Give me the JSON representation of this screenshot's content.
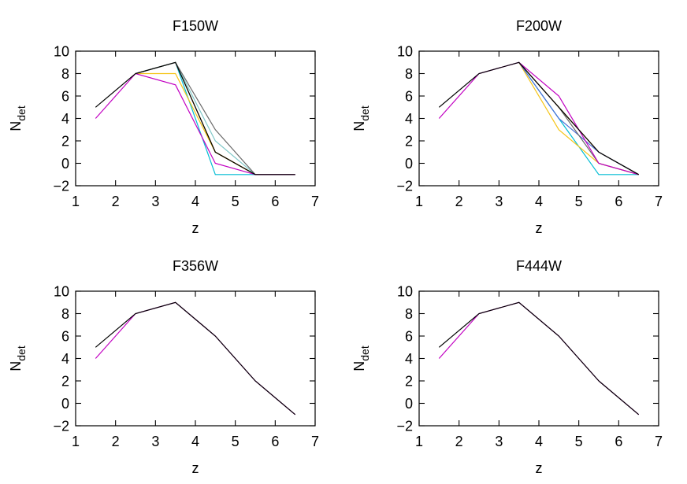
{
  "chart_data": [
    {
      "type": "line",
      "title": "F150W",
      "xlabel": "z",
      "ylabel": "N",
      "ylabel_sub": "det",
      "xlim": [
        1,
        7
      ],
      "ylim": [
        -2,
        10
      ],
      "xticks": [
        1,
        2,
        3,
        4,
        5,
        6,
        7
      ],
      "yticks": [
        -2,
        0,
        2,
        4,
        6,
        8,
        10
      ],
      "grid": false,
      "series": [
        {
          "color": "#00bcd4",
          "x": [
            2.5,
            3.5,
            4.5,
            5.5,
            6.5
          ],
          "y": [
            8,
            9,
            -1,
            -1,
            -1
          ]
        },
        {
          "color": "#4a6fd8",
          "x": [
            2.5,
            3.5,
            4.5,
            5.5,
            6.5
          ],
          "y": [
            8,
            9,
            1,
            -1,
            -1
          ]
        },
        {
          "color": "#e69500",
          "x": [
            2.5,
            3.5,
            4.5,
            5.5,
            6.5
          ],
          "y": [
            8,
            9,
            1,
            -1,
            -1
          ]
        },
        {
          "color": "#f5c518",
          "x": [
            2.5,
            3.5,
            4.5,
            5.5,
            6.5
          ],
          "y": [
            8,
            8,
            1,
            -1,
            -1
          ]
        },
        {
          "color": "#7fc8c8",
          "x": [
            2.5,
            3.5,
            4.5,
            5.5,
            6.5
          ],
          "y": [
            8,
            9,
            2,
            -1,
            -1
          ]
        },
        {
          "color": "#6a6a6a",
          "x": [
            2.5,
            3.5,
            4.5,
            5.5,
            6.5
          ],
          "y": [
            8,
            9,
            3,
            -1,
            -1
          ]
        },
        {
          "color": "#c200c2",
          "x": [
            1.5,
            2.5,
            3.5,
            4.5,
            5.5,
            6.5
          ],
          "y": [
            4,
            8,
            7,
            0,
            -1,
            -1
          ]
        },
        {
          "color": "#000000",
          "x": [
            1.5,
            2.5,
            3.5,
            4.5,
            5.5,
            6.5
          ],
          "y": [
            5,
            8,
            9,
            1,
            -1,
            -1
          ]
        }
      ]
    },
    {
      "type": "line",
      "title": "F200W",
      "xlabel": "z",
      "ylabel": "N",
      "ylabel_sub": "det",
      "xlim": [
        1,
        7
      ],
      "ylim": [
        -2,
        10
      ],
      "xticks": [
        1,
        2,
        3,
        4,
        5,
        6,
        7
      ],
      "yticks": [
        -2,
        0,
        2,
        4,
        6,
        8,
        10
      ],
      "grid": false,
      "series": [
        {
          "color": "#00bcd4",
          "x": [
            3.5,
            4.5,
            5.5,
            6.5
          ],
          "y": [
            9,
            4,
            -1,
            -1
          ]
        },
        {
          "color": "#f5c518",
          "x": [
            3.5,
            4.5,
            5.5,
            6.5
          ],
          "y": [
            9,
            3,
            0,
            -1
          ]
        },
        {
          "color": "#e69500",
          "x": [
            3.5,
            4.5,
            5.5,
            6.5
          ],
          "y": [
            9,
            5,
            1,
            -1
          ]
        },
        {
          "color": "#4a6fd8",
          "x": [
            3.5,
            4.5,
            5.5,
            6.5
          ],
          "y": [
            9,
            4,
            1,
            -1
          ]
        },
        {
          "color": "#6a6a6a",
          "x": [
            3.5,
            4.5,
            5.5,
            6.5
          ],
          "y": [
            9,
            5,
            0,
            -1
          ]
        },
        {
          "color": "#c200c2",
          "x": [
            1.5,
            2.5,
            3.5,
            4.5,
            5.5,
            6.5
          ],
          "y": [
            4,
            8,
            9,
            6,
            0,
            -1
          ]
        },
        {
          "color": "#000000",
          "x": [
            1.5,
            2.5,
            3.5,
            4.5,
            5.5,
            6.5
          ],
          "y": [
            5,
            8,
            9,
            5,
            1,
            -1
          ]
        }
      ]
    },
    {
      "type": "line",
      "title": "F356W",
      "xlabel": "z",
      "ylabel": "N",
      "ylabel_sub": "det",
      "xlim": [
        1,
        7
      ],
      "ylim": [
        -2,
        10
      ],
      "xticks": [
        1,
        2,
        3,
        4,
        5,
        6,
        7
      ],
      "yticks": [
        -2,
        0,
        2,
        4,
        6,
        8,
        10
      ],
      "grid": false,
      "series": [
        {
          "color": "#c200c2",
          "x": [
            1.5,
            2.5,
            3.5,
            4.5,
            5.5,
            6.5
          ],
          "y": [
            4,
            8,
            9,
            6,
            2,
            -1
          ]
        },
        {
          "color": "#000000",
          "x": [
            1.5,
            2.5,
            3.5,
            4.5,
            5.5,
            6.5
          ],
          "y": [
            5,
            8,
            9,
            6,
            2,
            -1
          ]
        }
      ]
    },
    {
      "type": "line",
      "title": "F444W",
      "xlabel": "z",
      "ylabel": "N",
      "ylabel_sub": "det",
      "xlim": [
        1,
        7
      ],
      "ylim": [
        -2,
        10
      ],
      "xticks": [
        1,
        2,
        3,
        4,
        5,
        6,
        7
      ],
      "yticks": [
        -2,
        0,
        2,
        4,
        6,
        8,
        10
      ],
      "grid": false,
      "series": [
        {
          "color": "#c200c2",
          "x": [
            1.5,
            2.5,
            3.5,
            4.5,
            5.5,
            6.5
          ],
          "y": [
            4,
            8,
            9,
            6,
            2,
            -1
          ]
        },
        {
          "color": "#000000",
          "x": [
            1.5,
            2.5,
            3.5,
            4.5,
            5.5,
            6.5
          ],
          "y": [
            5,
            8,
            9,
            6,
            2,
            -1
          ]
        }
      ]
    }
  ]
}
